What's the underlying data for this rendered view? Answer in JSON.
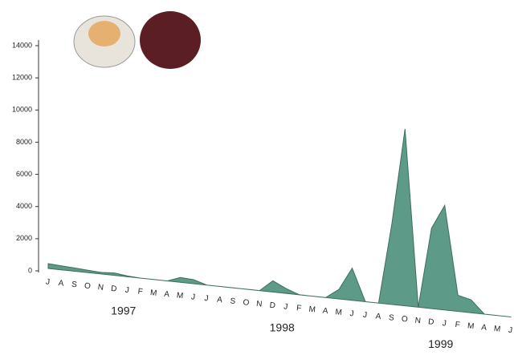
{
  "chart_data": {
    "type": "area",
    "categories": [
      "J",
      "A",
      "S",
      "O",
      "N",
      "D",
      "J",
      "F",
      "M",
      "A",
      "M",
      "J",
      "J",
      "A",
      "S",
      "O",
      "N",
      "D",
      "J",
      "F",
      "M",
      "A",
      "M",
      "J",
      "J",
      "A",
      "S",
      "O",
      "N",
      "D",
      "J",
      "F",
      "M",
      "A",
      "M",
      "J"
    ],
    "values": [
      300,
      250,
      200,
      150,
      100,
      150,
      50,
      0,
      0,
      0,
      300,
      250,
      0,
      0,
      0,
      0,
      0,
      700,
      300,
      0,
      0,
      0,
      600,
      2000,
      0,
      0,
      5000,
      11000,
      0,
      5000,
      6500,
      1000,
      800,
      0,
      0,
      0
    ],
    "years": [
      "1997",
      "1998",
      "1999"
    ],
    "color": "#5e9a88",
    "ylim": [
      0,
      14000
    ],
    "yticks": [
      0,
      2000,
      4000,
      6000,
      8000,
      10000,
      12000,
      14000
    ]
  }
}
